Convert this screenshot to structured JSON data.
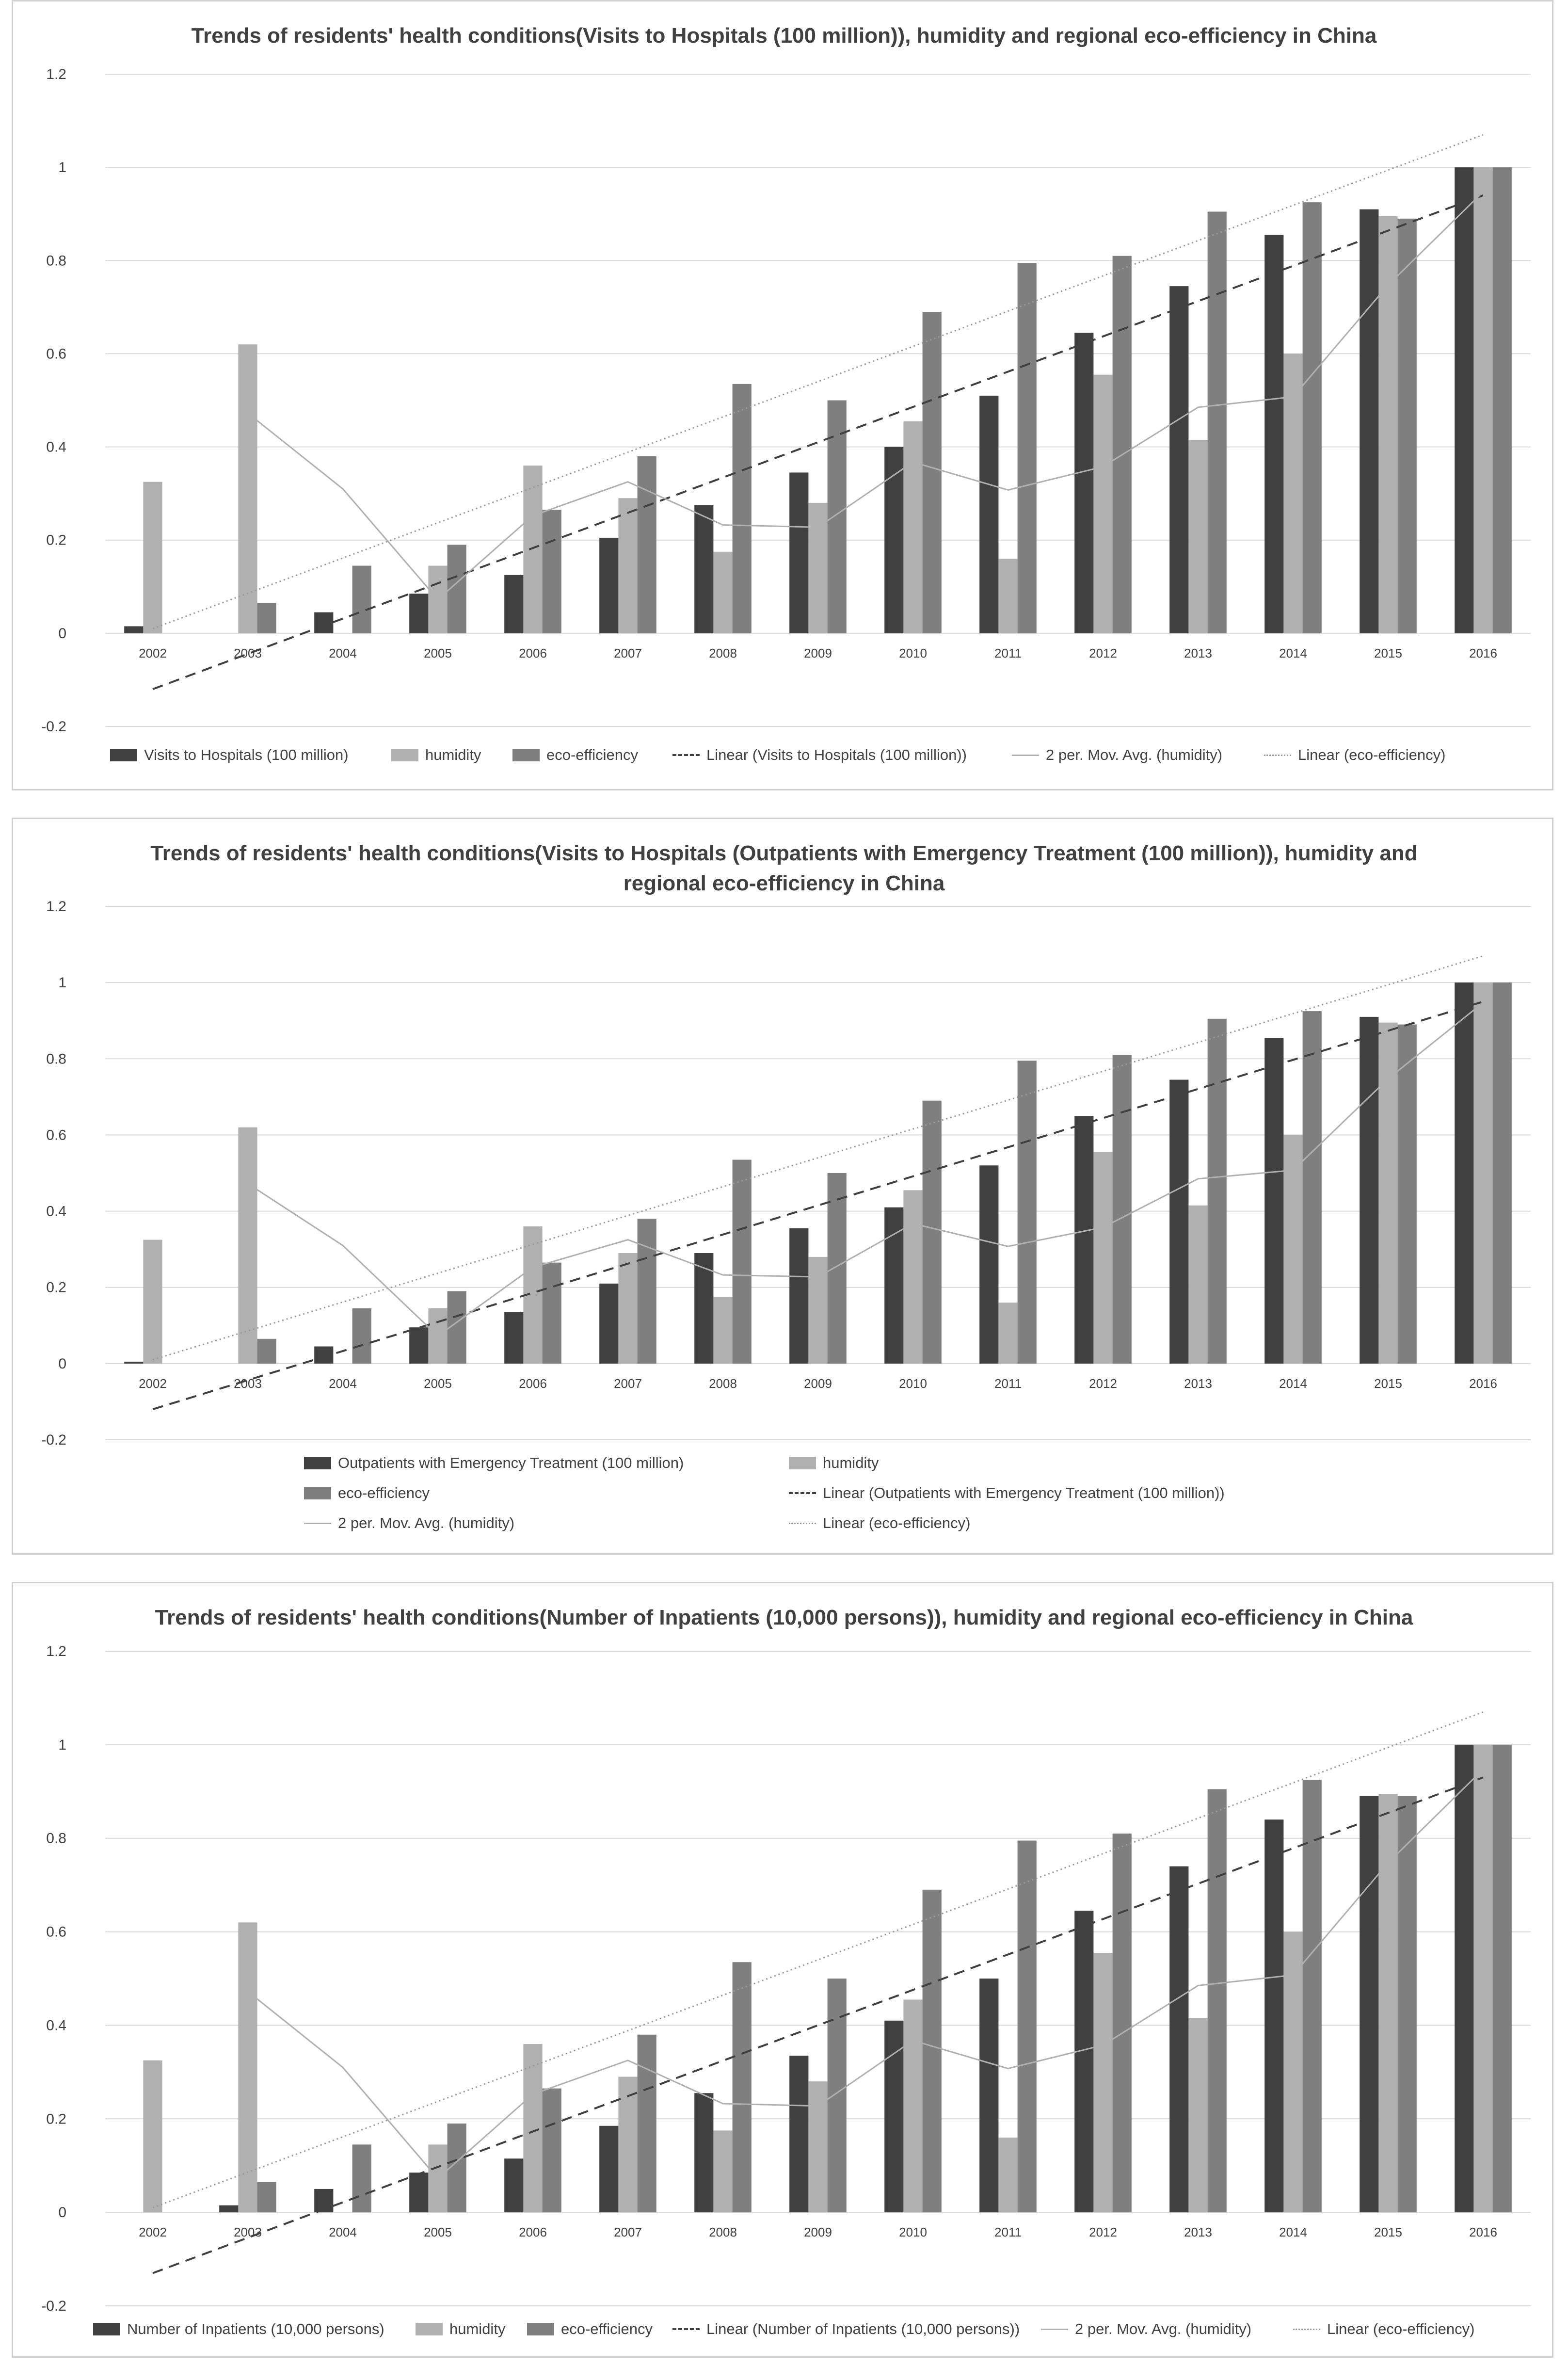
{
  "colors": {
    "visits": "#404040",
    "humidity": "#b0b0b0",
    "eco": "#7f7f7f",
    "grid": "#d9d9d9",
    "text": "#404040"
  },
  "chart_data": [
    {
      "type": "bar",
      "title": "Trends of residents' health conditions(Visits to Hospitals (100 million)), humidity and regional eco-efficiency in China",
      "categories": [
        "2002",
        "2003",
        "2004",
        "2005",
        "2006",
        "2007",
        "2008",
        "2009",
        "2010",
        "2011",
        "2012",
        "2013",
        "2014",
        "2015",
        "2016"
      ],
      "ylim": [
        -0.2,
        1.2
      ],
      "yticks": [
        -0.2,
        0,
        0.2,
        0.4,
        0.6,
        0.8,
        1,
        1.2
      ],
      "ytick_labels": [
        "-0.2",
        "0",
        "0.2",
        "0.4",
        "0.6",
        "0.8",
        "1",
        "1.2"
      ],
      "grid": true,
      "legend_position": "bottom",
      "series": [
        {
          "name": "Visits to Hospitals (100 million)",
          "values": [
            0.015,
            0,
            0.045,
            0.085,
            0.125,
            0.205,
            0.275,
            0.345,
            0.4,
            0.51,
            0.645,
            0.745,
            0.855,
            0.91,
            1.0
          ]
        },
        {
          "name": "humidity",
          "values": [
            0.325,
            0.62,
            0,
            0.145,
            0.36,
            0.29,
            0.175,
            0.28,
            0.455,
            0.16,
            0.555,
            0.415,
            0.6,
            0.895,
            1.0
          ]
        },
        {
          "name": "eco-efficiency",
          "values": [
            0,
            0.065,
            0.145,
            0.19,
            0.265,
            0.38,
            0.535,
            0.5,
            0.69,
            0.795,
            0.81,
            0.905,
            0.925,
            0.89,
            1.0
          ]
        }
      ],
      "trend_lines": [
        {
          "name": "Linear (Visits to Hospitals (100 million))",
          "start": -0.12,
          "end": 0.94
        },
        {
          "name": "Linear (eco-efficiency)",
          "start": 0.01,
          "end": 1.07
        }
      ],
      "moving_average": {
        "name": "2 per. Mov. Avg. (humidity)",
        "period": 2,
        "source": "humidity"
      }
    },
    {
      "type": "bar",
      "title": "Trends of residents' health conditions(Visits to Hospitals (Outpatients with Emergency Treatment (100 million)), humidity and regional eco-efficiency in China",
      "categories": [
        "2002",
        "2003",
        "2004",
        "2005",
        "2006",
        "2007",
        "2008",
        "2009",
        "2010",
        "2011",
        "2012",
        "2013",
        "2014",
        "2015",
        "2016"
      ],
      "ylim": [
        -0.2,
        1.2
      ],
      "yticks": [
        -0.2,
        0,
        0.2,
        0.4,
        0.6,
        0.8,
        1,
        1.2
      ],
      "ytick_labels": [
        "-0.2",
        "0",
        "0.2",
        "0.4",
        "0.6",
        "0.8",
        "1",
        "1.2"
      ],
      "grid": true,
      "legend_position": "bottom",
      "series": [
        {
          "name": "Outpatients with Emergency Treatment  (100 million)",
          "values": [
            0.005,
            0,
            0.045,
            0.095,
            0.135,
            0.21,
            0.29,
            0.355,
            0.41,
            0.52,
            0.65,
            0.745,
            0.855,
            0.91,
            1.0
          ]
        },
        {
          "name": "humidity",
          "values": [
            0.325,
            0.62,
            0,
            0.145,
            0.36,
            0.29,
            0.175,
            0.28,
            0.455,
            0.16,
            0.555,
            0.415,
            0.6,
            0.895,
            1.0
          ]
        },
        {
          "name": "eco-efficiency",
          "values": [
            0,
            0.065,
            0.145,
            0.19,
            0.265,
            0.38,
            0.535,
            0.5,
            0.69,
            0.795,
            0.81,
            0.905,
            0.925,
            0.89,
            1.0
          ]
        }
      ],
      "trend_lines": [
        {
          "name": "Linear (Outpatients with Emergency Treatment  (100 million))",
          "start": -0.12,
          "end": 0.95
        },
        {
          "name": "Linear (eco-efficiency)",
          "start": 0.01,
          "end": 1.07
        }
      ],
      "moving_average": {
        "name": "2 per. Mov. Avg. (humidity)",
        "period": 2,
        "source": "humidity"
      }
    },
    {
      "type": "bar",
      "title": "Trends of residents' health conditions(Number of Inpatients (10,000 persons)), humidity and regional eco-efficiency in China",
      "categories": [
        "2002",
        "2003",
        "2004",
        "2005",
        "2006",
        "2007",
        "2008",
        "2009",
        "2010",
        "2011",
        "2012",
        "2013",
        "2014",
        "2015",
        "2016"
      ],
      "ylim": [
        -0.2,
        1.2
      ],
      "yticks": [
        -0.2,
        0,
        0.2,
        0.4,
        0.6,
        0.8,
        1,
        1.2
      ],
      "ytick_labels": [
        "-0.2",
        "0",
        "0.2",
        "0.4",
        "0.6",
        "0.8",
        "1",
        "1.2"
      ],
      "grid": true,
      "legend_position": "bottom",
      "series": [
        {
          "name": "Number of Inpatients (10,000 persons)",
          "values": [
            0,
            0.015,
            0.05,
            0.085,
            0.115,
            0.185,
            0.255,
            0.335,
            0.41,
            0.5,
            0.645,
            0.74,
            0.84,
            0.89,
            1.0
          ]
        },
        {
          "name": "humidity",
          "values": [
            0.325,
            0.62,
            0,
            0.145,
            0.36,
            0.29,
            0.175,
            0.28,
            0.455,
            0.16,
            0.555,
            0.415,
            0.6,
            0.895,
            1.0
          ]
        },
        {
          "name": "eco-efficiency",
          "values": [
            0,
            0.065,
            0.145,
            0.19,
            0.265,
            0.38,
            0.535,
            0.5,
            0.69,
            0.795,
            0.81,
            0.905,
            0.925,
            0.89,
            1.0
          ]
        }
      ],
      "trend_lines": [
        {
          "name": "Linear (Number of Inpatients (10,000 persons))",
          "start": -0.13,
          "end": 0.93
        },
        {
          "name": "Linear (eco-efficiency)",
          "start": 0.01,
          "end": 1.07
        }
      ],
      "moving_average": {
        "name": "2 per. Mov. Avg. (humidity)",
        "period": 2,
        "source": "humidity"
      }
    }
  ]
}
